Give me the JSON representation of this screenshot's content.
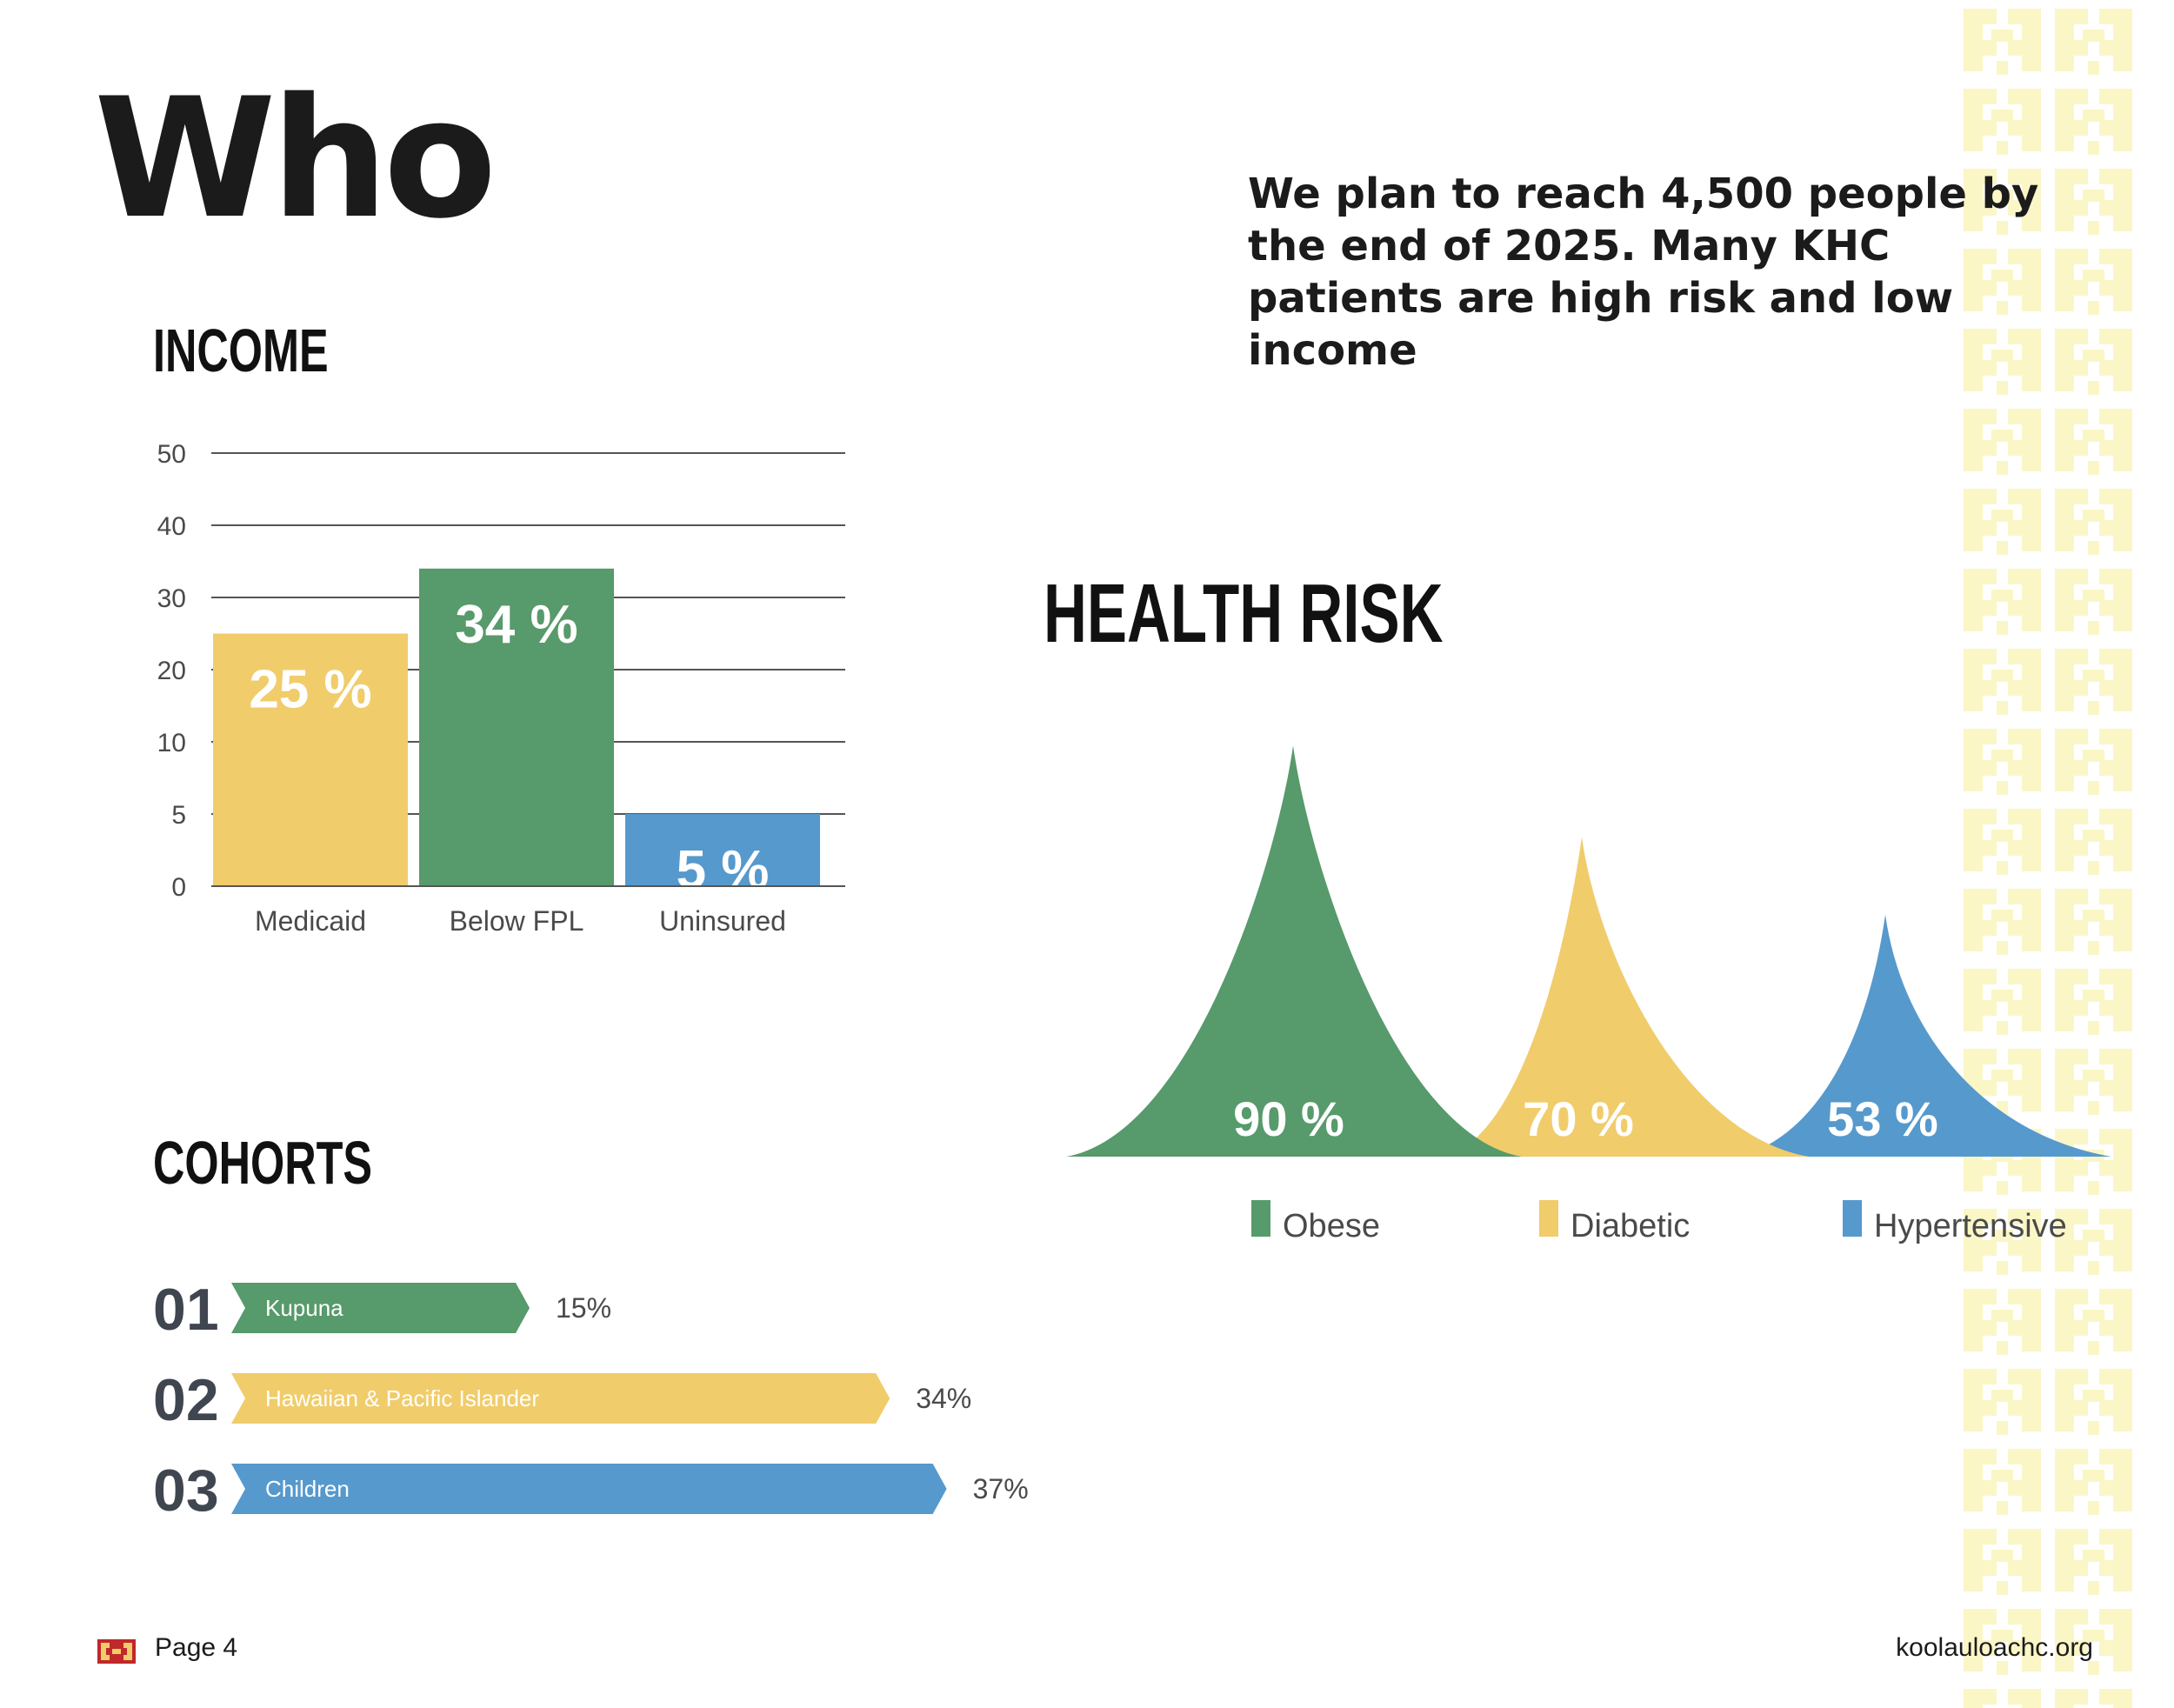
{
  "page": {
    "title": "Who",
    "intro": "We plan to reach 4,500 people by the end of 2025. Many KHC patients are high risk and low income",
    "page_label": "Page 4",
    "website": "koolauloachc.org"
  },
  "colors": {
    "green": "#579a6b",
    "yellow": "#f0cc6b",
    "blue": "#5699cd",
    "pattern": "#fbf6c6",
    "gridline": "#555555"
  },
  "chart_data": [
    {
      "id": "income",
      "type": "bar",
      "title": "INCOME",
      "categories": [
        "Medicaid",
        "Below FPL",
        "Uninsured"
      ],
      "values": [
        25,
        34,
        5
      ],
      "value_labels": [
        "25 %",
        "34 %",
        "5 %"
      ],
      "colors": [
        "#f0cc6b",
        "#579a6b",
        "#5699cd"
      ],
      "y_ticks": [
        "0",
        "5",
        "10",
        "20",
        "30",
        "40",
        "50"
      ],
      "grid": true
    },
    {
      "id": "health_risk",
      "type": "area",
      "title": "HEALTH RISK",
      "categories": [
        "Obese",
        "Diabetic",
        "Hypertensive"
      ],
      "values": [
        90,
        70,
        53
      ],
      "value_labels": [
        "90 %",
        "70 %",
        "53 %"
      ],
      "colors": [
        "#579a6b",
        "#f0cc6b",
        "#5699cd"
      ],
      "legend": "bottom"
    },
    {
      "id": "cohorts",
      "type": "bar",
      "orientation": "horizontal",
      "title": "COHORTS",
      "numbers": [
        "01",
        "02",
        "03"
      ],
      "categories": [
        "Kupuna",
        "Hawaiian & Pacific Islander",
        "Children"
      ],
      "values": [
        15,
        34,
        37
      ],
      "value_labels": [
        "15%",
        "34%",
        "37%"
      ],
      "colors": [
        "#579a6b",
        "#f0cc6b",
        "#5699cd"
      ]
    }
  ]
}
